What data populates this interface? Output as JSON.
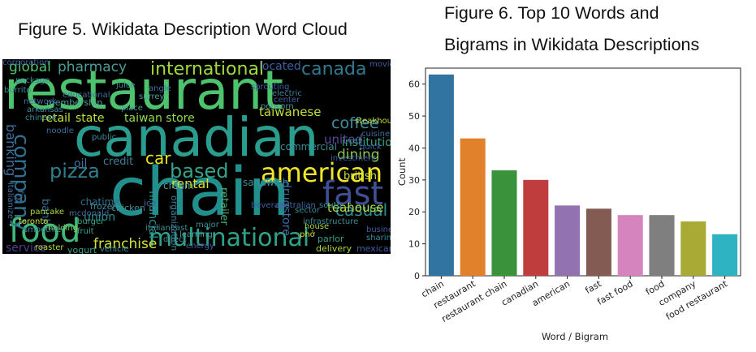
{
  "figure5": {
    "title": "Figure 5. Wikidata Description Word Cloud",
    "words": [
      {
        "text": "restaurant",
        "color": "#4ec36d"
      },
      {
        "text": "canadian",
        "color": "#2a9d8f"
      },
      {
        "text": "chain",
        "color": "#218f8c"
      },
      {
        "text": "american",
        "color": "#f0e529"
      },
      {
        "text": "fast",
        "color": "#3e4f95"
      },
      {
        "text": "food",
        "color": "#3fb97a"
      },
      {
        "text": "company",
        "color": "#2f6f8e"
      },
      {
        "text": "multinational",
        "color": "#2fa28a"
      },
      {
        "text": "international",
        "color": "#9fda3a"
      },
      {
        "text": "pizza",
        "color": "#2f7f8e"
      },
      {
        "text": "based",
        "color": "#35a38a"
      },
      {
        "text": "franchise",
        "color": "#d7e334"
      },
      {
        "text": "casual",
        "color": "#2d8f8d"
      },
      {
        "text": "canada",
        "color": "#2f7a90"
      },
      {
        "text": "global",
        "color": "#4fc46a"
      },
      {
        "text": "pharmacy",
        "color": "#4a9f9a"
      },
      {
        "text": "taiwan store",
        "color": "#8edb4b"
      },
      {
        "text": "state",
        "color": "#bde33a"
      },
      {
        "text": "retail",
        "color": "#c7e63a"
      },
      {
        "text": "coffee",
        "color": "#3f8ea0"
      },
      {
        "text": "taiwanese",
        "color": "#c2df37"
      },
      {
        "text": "united",
        "color": "#5a4a9a"
      },
      {
        "text": "dining",
        "color": "#8cc54b"
      },
      {
        "text": "institution",
        "color": "#35a38a"
      },
      {
        "text": "car",
        "color": "#e5e41f"
      },
      {
        "text": "rental",
        "color": "#d8e22a"
      },
      {
        "text": "sandwich",
        "color": "#3a8e9b"
      },
      {
        "text": "commercial",
        "color": "#3a8e9b"
      },
      {
        "text": "oil",
        "color": "#3e6fa0"
      },
      {
        "text": "credit",
        "color": "#3e7f99"
      },
      {
        "text": "cream",
        "color": "#4aa0a0"
      },
      {
        "text": "banking",
        "color": "#3f6fa0"
      },
      {
        "text": "bank",
        "color": "#2f6f8e"
      },
      {
        "text": "retailer",
        "color": "#49b07a"
      },
      {
        "text": "drugstore",
        "color": "#3a6fa0"
      },
      {
        "text": "organization",
        "color": "#3f7f9a"
      },
      {
        "text": "financial",
        "color": "#2f8f90"
      },
      {
        "text": "teahouse",
        "color": "#b0df40"
      },
      {
        "text": "british",
        "color": "#d0e23a"
      },
      {
        "text": "union",
        "color": "#2d8f8d"
      },
      {
        "text": "chatime",
        "color": "#2f6f8e"
      },
      {
        "text": "service",
        "color": "#4a3f8e"
      },
      {
        "text": "located",
        "color": "#3e5fa0"
      },
      {
        "text": "chicken",
        "color": "#3a8e9b"
      },
      {
        "text": "frozen",
        "color": "#3a8e9b"
      },
      {
        "text": "ice",
        "color": "#3e5fa0"
      },
      {
        "text": "yogurt",
        "color": "#35a38a"
      },
      {
        "text": "mexican",
        "color": "#3e5fa0"
      },
      {
        "text": "parlor",
        "color": "#35a38a"
      },
      {
        "text": "delivery",
        "color": "#a8dc3f"
      },
      {
        "text": "pancake",
        "color": "#a8dc3f"
      },
      {
        "text": "roaster",
        "color": "#b8df3d"
      },
      {
        "text": "membership",
        "color": "#4aa0a0"
      },
      {
        "text": "burger",
        "color": "#35a38a"
      },
      {
        "text": "holding",
        "color": "#7fcf55"
      },
      {
        "text": "toronto",
        "color": "#c8e43a"
      },
      {
        "text": "smoothie",
        "color": "#3a8e9b"
      },
      {
        "text": "juice",
        "color": "#3a8e9b"
      },
      {
        "text": "electric",
        "color": "#3e7f99"
      },
      {
        "text": "popcorn",
        "color": "#4a9aa0"
      },
      {
        "text": "cuisine",
        "color": "#3e6fa0"
      },
      {
        "text": "steakhouse",
        "color": "#c2df37"
      },
      {
        "text": "house",
        "color": "#a8dc3f"
      },
      {
        "text": "sector",
        "color": "#3a8e9b"
      },
      {
        "text": "phở",
        "color": "#d0e23a"
      },
      {
        "text": "infrastructure",
        "color": "#3a8e9b"
      },
      {
        "text": "sharing",
        "color": "#3a8e9b"
      },
      {
        "text": "beverage",
        "color": "#3e5fa0"
      },
      {
        "text": "fruit",
        "color": "#35a38a"
      },
      {
        "text": "italianeast",
        "color": "#3a8e9b"
      },
      {
        "text": "learning",
        "color": "#4a9aa0"
      },
      {
        "text": "energy",
        "color": "#3e5fa0"
      },
      {
        "text": "vehicle",
        "color": "#3a8e9b"
      },
      {
        "text": "noodle",
        "color": "#3e6fa0"
      },
      {
        "text": "public",
        "color": "#3a8e9b"
      },
      {
        "text": "place",
        "color": "#4aa0a0"
      },
      {
        "text": "surrey",
        "color": "#4aa0a0"
      },
      {
        "text": "angle",
        "color": "#3e6fa0"
      },
      {
        "text": "center",
        "color": "#3e5fa0"
      },
      {
        "text": "movie",
        "color": "#3e5fa0"
      },
      {
        "text": "quick",
        "color": "#3e5fa0"
      },
      {
        "text": "business",
        "color": "#3e5fa0"
      },
      {
        "text": "network",
        "color": "#3e6fa0"
      },
      {
        "text": "arkansas",
        "color": "#3a8e9b"
      },
      {
        "text": "chinese",
        "color": "#3a8e9b"
      },
      {
        "text": "burrito",
        "color": "#3a8e9b"
      },
      {
        "text": "package",
        "color": "#3a8e9b"
      },
      {
        "text": "educational",
        "color": "#3e6fa0"
      },
      {
        "text": "investment",
        "color": "#3e5fa0"
      },
      {
        "text": "australian",
        "color": "#3e6fa0"
      },
      {
        "text": "south",
        "color": "#3a8e9b"
      },
      {
        "text": "mcdonald",
        "color": "#3e6fa0"
      },
      {
        "text": "direct",
        "color": "#3a8e9b"
      },
      {
        "text": "major",
        "color": "#3a8e9b"
      },
      {
        "text": "fry",
        "color": "#3e6fa0"
      },
      {
        "text": "italianize",
        "color": "#3e6fa0"
      },
      {
        "text": "sprouting",
        "color": "#3e5fa0"
      },
      {
        "text": "corporation",
        "color": "#3e5fa0"
      }
    ]
  },
  "figure6": {
    "title_line1": "Figure 6. Top 10 Words and",
    "title_line2": "Bigrams in Wikidata Descriptions"
  },
  "chart_data": {
    "type": "bar",
    "title": "Figure 6. Top 10 Words and Bigrams in Wikidata Descriptions",
    "xlabel": "Word / Bigram",
    "ylabel": "Count",
    "categories": [
      "chain",
      "restaurant",
      "restaurant chain",
      "canadian",
      "american",
      "fast",
      "fast food",
      "food",
      "company",
      "food restaurant"
    ],
    "values": [
      63,
      43,
      33,
      30,
      22,
      21,
      19,
      19,
      17,
      13
    ],
    "colors": [
      "#3274a1",
      "#e1812c",
      "#3a923a",
      "#c03d3e",
      "#9372b2",
      "#845b53",
      "#d684bd",
      "#7f7f7f",
      "#a9aa35",
      "#2eb3c2"
    ],
    "ylim": [
      0,
      65
    ],
    "yticks": [
      0,
      10,
      20,
      30,
      40,
      50,
      60
    ],
    "grid": false
  }
}
